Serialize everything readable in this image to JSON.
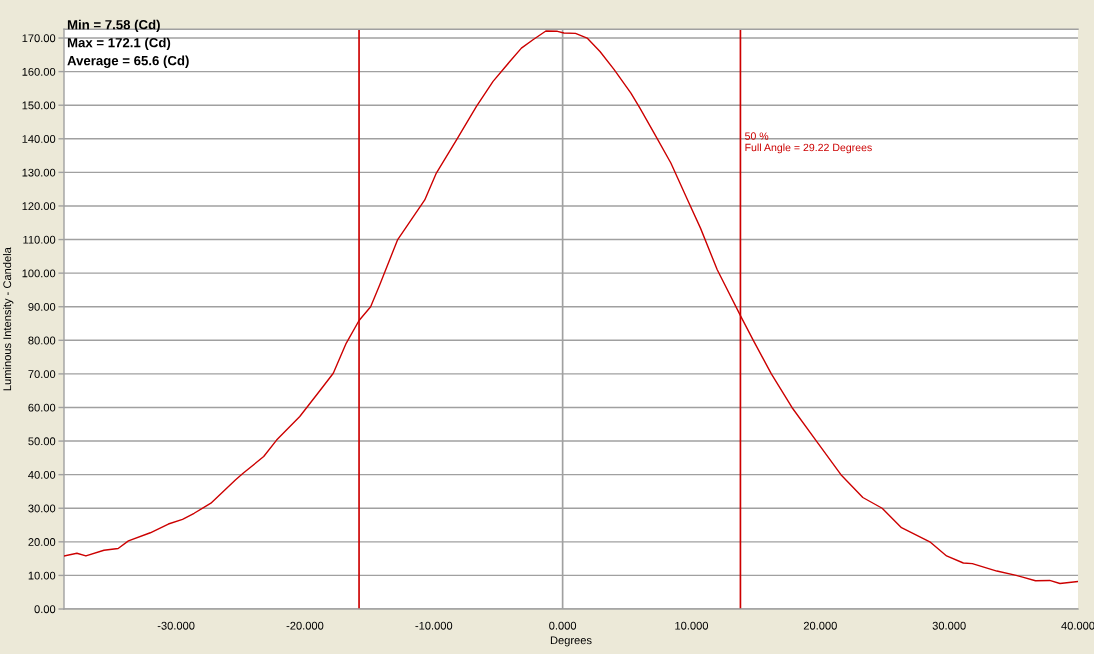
{
  "chart_data": {
    "type": "line",
    "xlabel": "Degrees",
    "ylabel": "Luminous Intensity - Candela",
    "x": [
      -38.7,
      -37.7,
      -37.0,
      -35.6,
      -34.5,
      -33.7,
      -32.0,
      -30.6,
      -29.5,
      -28.6,
      -27.3,
      -25.4,
      -24.8,
      -23.2,
      -22.2,
      -20.4,
      -18.8,
      -17.8,
      -16.8,
      -15.8,
      -14.9,
      -14.2,
      -12.8,
      -10.7,
      -9.8,
      -8.2,
      -6.7,
      -5.4,
      -4.1,
      -3.2,
      -2.3,
      -1.3,
      -0.4,
      0.1,
      1.0,
      1.9,
      2.9,
      4.0,
      5.3,
      6.0,
      7.1,
      8.4,
      9.7,
      10.7,
      12.0,
      13.9,
      14.8,
      16.2,
      17.8,
      19.7,
      21.6,
      23.3,
      24.8,
      26.3,
      28.5,
      29.8,
      31.1,
      31.8,
      33.7,
      35.2,
      35.7,
      36.7,
      37.8,
      38.6,
      40.0
    ],
    "series": [
      {
        "color": "#cc0000",
        "values": [
          15.8,
          16.6,
          15.8,
          17.5,
          18.0,
          20.3,
          22.7,
          25.3,
          26.7,
          28.5,
          31.5,
          38.4,
          40.4,
          45.4,
          50.3,
          57.3,
          65.2,
          70.2,
          79.1,
          85.9,
          90.0,
          96.5,
          110.0,
          121.8,
          129.8,
          139.9,
          149.6,
          157.1,
          163.0,
          167.0,
          169.5,
          172.1,
          172.0,
          171.5,
          171.4,
          170.0,
          166.0,
          160.6,
          153.6,
          149.1,
          141.7,
          132.8,
          121.8,
          113.4,
          101.0,
          86.6,
          80.0,
          70.0,
          60.0,
          50.0,
          40.0,
          33.2,
          30.0,
          24.2,
          20.0,
          15.8,
          13.7,
          13.5,
          11.3,
          10.0,
          9.5,
          8.4,
          8.5,
          7.6,
          8.2
        ]
      }
    ],
    "xlim": [
      -38.7,
      40
    ],
    "ylim": [
      0,
      172.6
    ],
    "xticks": [
      {
        "value": -30,
        "label": "-30.000"
      },
      {
        "value": -20,
        "label": "-20.000"
      },
      {
        "value": -10,
        "label": "-10.000"
      },
      {
        "value": 0,
        "label": "0.000"
      },
      {
        "value": 10,
        "label": "10.000"
      },
      {
        "value": 20,
        "label": "20.000"
      },
      {
        "value": 30,
        "label": "30.000"
      },
      {
        "value": 40,
        "label": "40.000"
      }
    ],
    "yticks": [
      {
        "value": 0,
        "label": "0.00"
      },
      {
        "value": 10,
        "label": "10.00"
      },
      {
        "value": 20,
        "label": "20.00"
      },
      {
        "value": 30,
        "label": "30.00"
      },
      {
        "value": 40,
        "label": "40.00"
      },
      {
        "value": 50,
        "label": "50.00"
      },
      {
        "value": 60,
        "label": "60.00"
      },
      {
        "value": 70,
        "label": "70.00"
      },
      {
        "value": 80,
        "label": "80.00"
      },
      {
        "value": 90,
        "label": "90.00"
      },
      {
        "value": 100,
        "label": "100.00"
      },
      {
        "value": 110,
        "label": "110.00"
      },
      {
        "value": 120,
        "label": "120.00"
      },
      {
        "value": 130,
        "label": "130.00"
      },
      {
        "value": 140,
        "label": "140.00"
      },
      {
        "value": 150,
        "label": "150.00"
      },
      {
        "value": 160,
        "label": "160.00"
      },
      {
        "value": 170,
        "label": "170.00"
      }
    ],
    "grid": "y",
    "marker": "none",
    "line_style": "solid",
    "ref_lines": [
      {
        "axis": "x",
        "value": 0,
        "color": "#a0a0a0"
      },
      {
        "axis": "x",
        "value": -15.8,
        "color": "#cc0000"
      },
      {
        "axis": "x",
        "value": 13.8,
        "color": "#cc0000"
      }
    ],
    "annotations": [
      "Min = 7.58 (Cd)",
      "Max = 172.1 (Cd)",
      "Average = 65.6 (Cd)",
      {
        "text": "50 %\nFull Angle = 29.22 Degrees",
        "x": 13.8,
        "y": 142
      }
    ]
  }
}
